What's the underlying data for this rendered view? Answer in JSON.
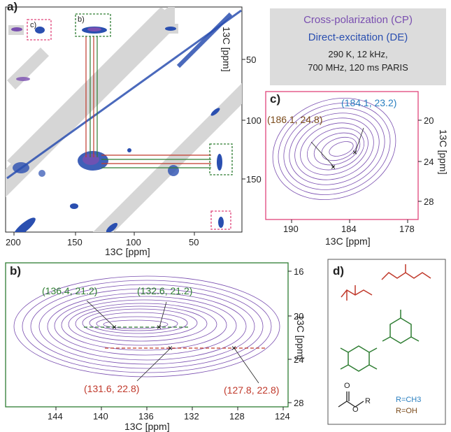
{
  "panel_a": {
    "label": "a)",
    "x_ticks": [
      "200",
      "150",
      "100",
      "50"
    ],
    "y_ticks": [
      "50",
      "100",
      "150"
    ],
    "x_title": "13C [ppm]",
    "y_title": "13C [ppm]",
    "box_c_label": "c)",
    "box_b_label": "b)"
  },
  "legend": {
    "cp": "Cross-polarization (CP)",
    "de": "Direct-excitation (DE)",
    "cond1": "290 K, 12 kHz,",
    "cond2": "700 MHz, 120 ms PARIS"
  },
  "panel_c": {
    "label": "c)",
    "x_ticks": [
      "190",
      "184",
      "178"
    ],
    "y_ticks": [
      "20",
      "24",
      "28"
    ],
    "x_title": "13C [ppm]",
    "y_title": "13C [ppm]",
    "peak1": "(186.1, 24.8)",
    "peak2": "(184.1, 23.2)"
  },
  "panel_b": {
    "label": "b)",
    "x_ticks": [
      "144",
      "140",
      "136",
      "132",
      "128",
      "124"
    ],
    "y_ticks": [
      "16",
      "20",
      "24",
      "28"
    ],
    "x_title": "13C [ppm]",
    "y_title": "13C [ppm]",
    "peak1": "(136.4, 21.2)",
    "peak2": "(132.6, 21.2)",
    "peak3": "(131.6, 22.8)",
    "peak4": "(127.8, 22.8)"
  },
  "panel_d": {
    "label": "d)",
    "r1": "R=CH3",
    "r2": "R=OH",
    "ester_o": "O",
    "ester_o2": "O",
    "ester_r": "R"
  },
  "colors": {
    "cp": "#7a4fb0",
    "de": "#2a4fb0",
    "red": "#c0392b",
    "green": "#2e7d32",
    "pink": "#e0457b",
    "blue_label": "#2a7fc0",
    "brown_label": "#7a4a1a"
  }
}
